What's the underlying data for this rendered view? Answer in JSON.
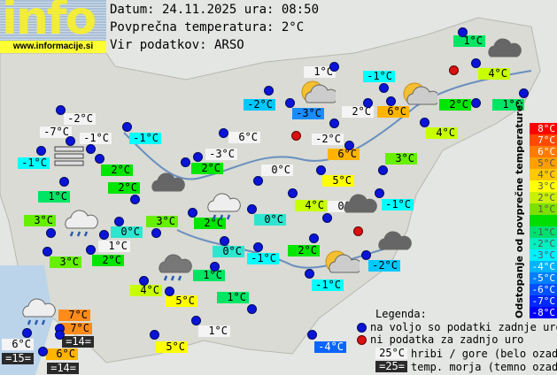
{
  "header": {
    "logo_text": "info",
    "logo_url": "www.informacije.si",
    "date_line": "Datum: 24.11.2025 ura: 08:50",
    "avg_line": "Povprečna temperatura: 2°C",
    "source_line": "Vir podatkov: ARSO"
  },
  "stations": [
    {
      "t": "1°C",
      "v": 1
    },
    {
      "t": "1°C",
      "v": "m"
    },
    {
      "t": "-1°C",
      "v": -1
    },
    {
      "t": "4°C",
      "v": 4
    },
    {
      "t": "-2°C",
      "v": -2
    },
    {
      "t": "-3°C",
      "v": -3
    },
    {
      "t": "2°C",
      "v": "m"
    },
    {
      "t": "6°C",
      "v": 6
    },
    {
      "t": "2°C",
      "v": 2
    },
    {
      "t": "1°C",
      "v": 1
    },
    {
      "t": "4°C",
      "v": 4
    },
    {
      "t": "-2°C",
      "v": "m"
    },
    {
      "t": "-7°C",
      "v": "m"
    },
    {
      "t": "-1°C",
      "v": "m"
    },
    {
      "t": "-1°C",
      "v": -1
    },
    {
      "t": "6°C",
      "v": "m"
    },
    {
      "t": "-1°C",
      "v": -1
    },
    {
      "t": "-3°C",
      "v": "m"
    },
    {
      "t": "2°C",
      "v": 2
    },
    {
      "t": "2°C",
      "v": 2
    },
    {
      "t": "0°C",
      "v": "m"
    },
    {
      "t": "2°C",
      "v": 2
    },
    {
      "t": "1°C",
      "v": 1
    },
    {
      "t": "3°C",
      "v": 3
    },
    {
      "t": "3°C",
      "v": 3
    },
    {
      "t": "0°C",
      "v": 0
    },
    {
      "t": "2°C",
      "v": 2
    },
    {
      "t": "0°C",
      "v": 0
    },
    {
      "t": "1°C",
      "v": "m"
    },
    {
      "t": "3°C",
      "v": 3
    },
    {
      "t": "2°C",
      "v": 2
    },
    {
      "t": "0°C",
      "v": 0
    },
    {
      "t": "-1°C",
      "v": -1
    },
    {
      "t": "-2°C",
      "v": "m"
    },
    {
      "t": "6°C",
      "v": 6
    },
    {
      "t": "3°C",
      "v": 3
    },
    {
      "t": "5°C",
      "v": 5
    },
    {
      "t": "4°C",
      "v": 4
    },
    {
      "t": "0°C",
      "v": "m"
    },
    {
      "t": "-1°C",
      "v": -1
    },
    {
      "t": "2°C",
      "v": 2
    },
    {
      "t": "-2°C",
      "v": -2
    },
    {
      "t": "1°C",
      "v": 1
    },
    {
      "t": "-1°C",
      "v": -1
    },
    {
      "t": "4°C",
      "v": 4
    },
    {
      "t": "5°C",
      "v": 5
    },
    {
      "t": "1°C",
      "v": 1
    },
    {
      "t": "7°C",
      "v": 7
    },
    {
      "t": "7°C",
      "v": 7
    },
    {
      "t": "=14=",
      "v": "s"
    },
    {
      "t": "6°C",
      "v": "m"
    },
    {
      "t": "=15=",
      "v": "s"
    },
    {
      "t": "6°C",
      "v": 6
    },
    {
      "t": "=14=",
      "v": "s"
    },
    {
      "t": "1°C",
      "v": "m"
    },
    {
      "t": "5°C",
      "v": 5
    },
    {
      "t": "-4°C",
      "v": -4
    }
  ],
  "scale": {
    "title": "Odstopanje od povprečne temperature:",
    "items": [
      {
        "t": "8°C",
        "c": "#ff0000"
      },
      {
        "t": "7°C",
        "c": "#ff4a00"
      },
      {
        "t": "6°C",
        "c": "#ff7a00"
      },
      {
        "t": "5°C",
        "c": "#ffa000"
      },
      {
        "t": "4°C",
        "c": "#ffc800"
      },
      {
        "t": "3°C",
        "c": "#ffff00"
      },
      {
        "t": "2°C",
        "c": "#c8f000"
      },
      {
        "t": "1°C",
        "c": "#7ee000"
      },
      {
        "t": "",
        "c": "#00dd00"
      },
      {
        "t": "-1°C",
        "c": "#00e070"
      },
      {
        "t": "-2°C",
        "c": "#00f0c0"
      },
      {
        "t": "-3°C",
        "c": "#00f0ff"
      },
      {
        "t": "-4°C",
        "c": "#00b4ff"
      },
      {
        "t": "-5°C",
        "c": "#0080ff"
      },
      {
        "t": "-6°C",
        "c": "#0050ff"
      },
      {
        "t": "-7°C",
        "c": "#0028ff"
      },
      {
        "t": "-8°C",
        "c": "#0000ff"
      }
    ]
  },
  "colors": {
    "8": "#ff2000",
    "7": "#ff8c1a",
    "6": "#ffb400",
    "5": "#ffff00",
    "4": "#c8ff00",
    "3": "#66f000",
    "2": "#00e600",
    "1": "#00e664",
    "0": "#2ee6d0",
    "-1": "#00ffff",
    "-2": "#00c8ff",
    "-3": "#1a8cff",
    "-4": "#0a64ff",
    "m": "#f4f4f4",
    "s": "#2a2a2a"
  },
  "legend": {
    "title": "Legenda:",
    "blue": "na voljo so podatki zadnje ure",
    "red": "ni podatka za zadnjo uro",
    "mount_sample": "25°C",
    "mount": "hribi / gore (belo ozadje)",
    "sea_sample": "=25=",
    "sea": "temp. morja (temno ozadje)"
  }
}
